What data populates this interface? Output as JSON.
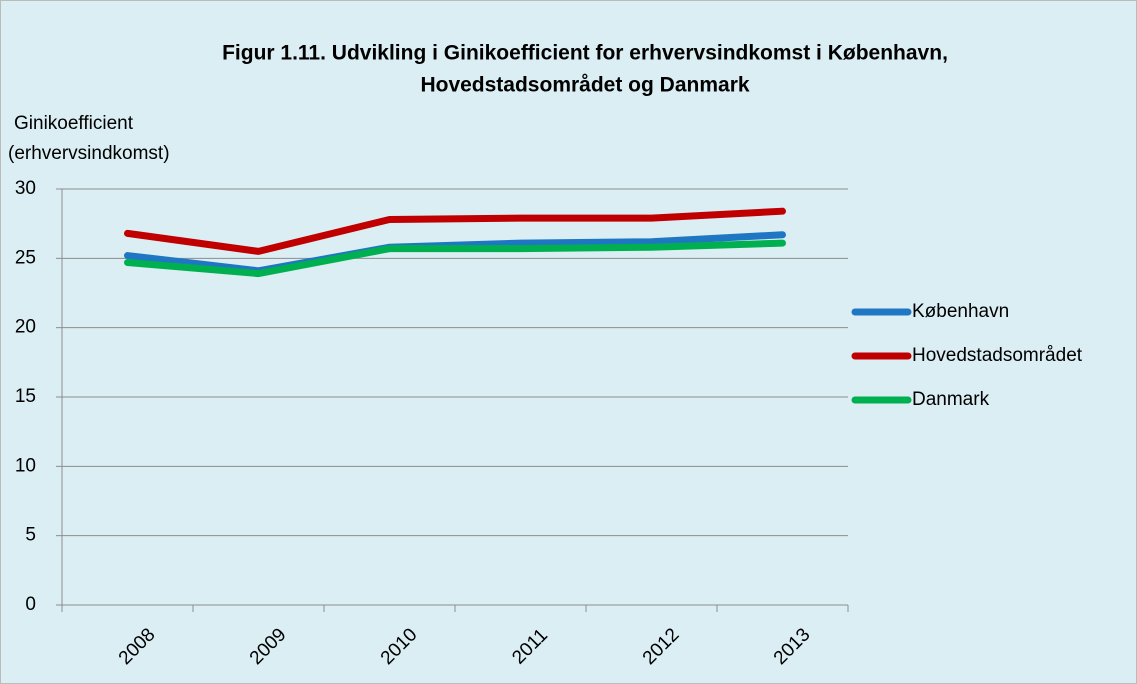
{
  "chart_data": {
    "type": "line",
    "title": [
      "Figur 1.11. Udvikling i Ginikoefficient for erhvervsindkomst i København,",
      "Hovedstadsområdet og Danmark"
    ],
    "y_label": [
      "Ginikoefficient",
      "(erhvervsindkomst)"
    ],
    "categories": [
      "2008",
      "2009",
      "2010",
      "2011",
      "2012",
      "2013"
    ],
    "series": [
      {
        "name": "København",
        "color": "#1f77c4",
        "values": [
          25.2,
          24.1,
          25.8,
          26.1,
          26.2,
          26.7
        ]
      },
      {
        "name": "Hovedstadsområdet",
        "color": "#c00000",
        "values": [
          26.8,
          25.5,
          27.8,
          27.9,
          27.9,
          28.4
        ]
      },
      {
        "name": "Danmark",
        "color": "#00b050",
        "values": [
          24.7,
          23.9,
          25.7,
          25.7,
          25.8,
          26.1
        ]
      }
    ],
    "ylim": [
      0,
      30
    ],
    "yticks": [
      0,
      5,
      10,
      15,
      20,
      25,
      30
    ],
    "grid": true,
    "legend": "right"
  }
}
